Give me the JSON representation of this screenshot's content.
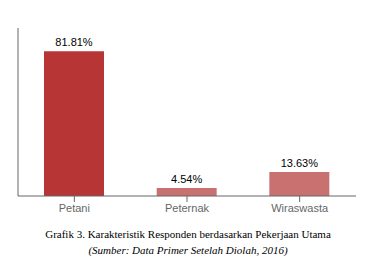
{
  "chart_data": {
    "type": "bar",
    "title": "Grafik 3. Karakteristik Responden berdasarkan Pekerjaan Utama",
    "subtitle": "(Sumber: Data Primer Setelah Diolah, 2016)",
    "categories": [
      "Petani",
      "Peternak",
      "Wiraswasta"
    ],
    "values": [
      81.81,
      4.54,
      13.63
    ],
    "value_labels": [
      "81.81%",
      "4.54%",
      "13.63%"
    ],
    "data_labels": true,
    "colors": [
      "#b83535",
      "#c97070",
      "#c97070"
    ],
    "ylim": [
      0,
      95
    ],
    "grid": false,
    "tick_labels": "x"
  }
}
